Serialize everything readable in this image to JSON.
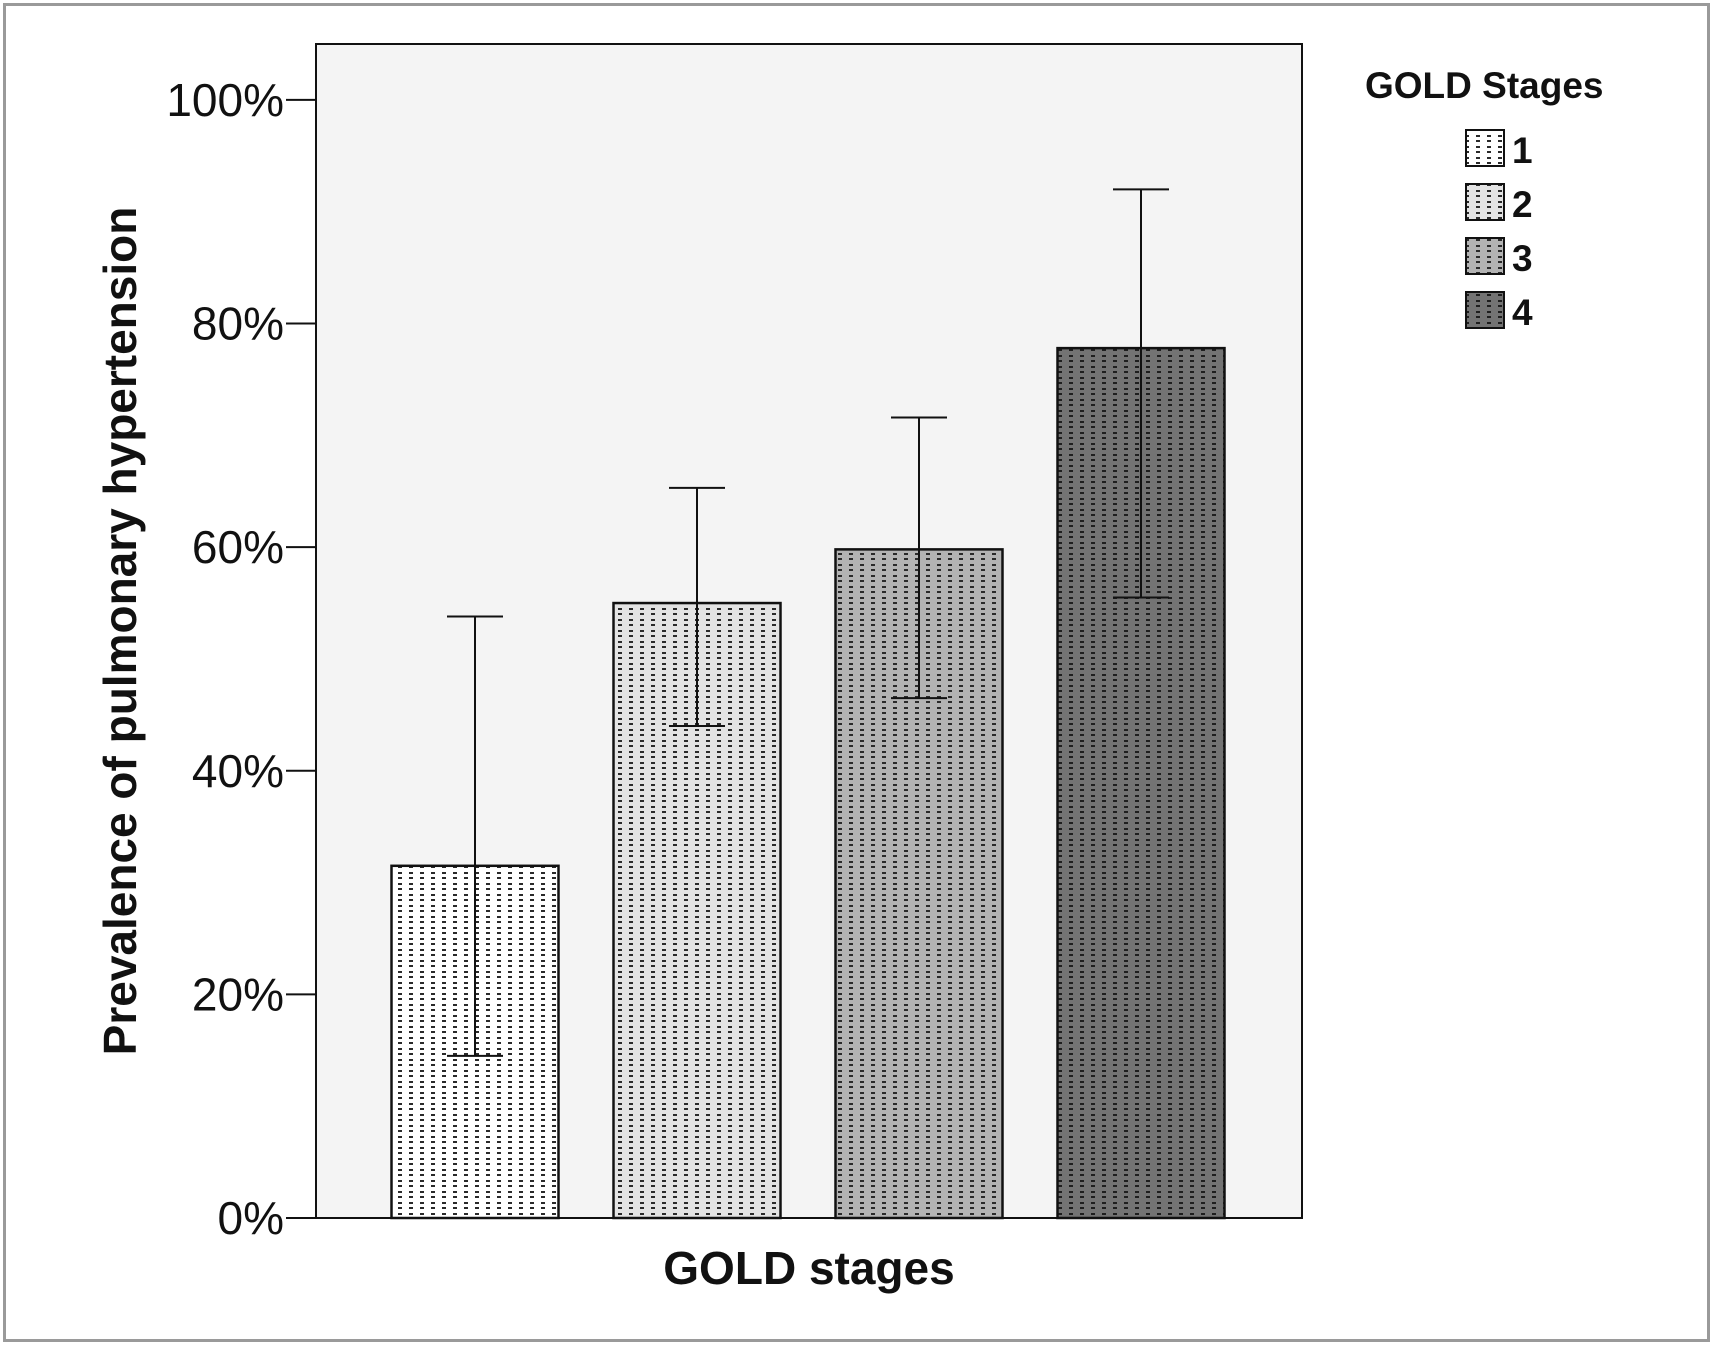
{
  "chart_data": {
    "type": "bar",
    "categories": [
      "1",
      "2",
      "3",
      "4"
    ],
    "values": [
      31.5,
      55,
      59.8,
      77.8
    ],
    "error_bars": {
      "lower": [
        14.5,
        44,
        46.5,
        55.5
      ],
      "upper": [
        53.8,
        65.3,
        71.6,
        92
      ]
    },
    "xlabel": "GOLD stages",
    "ylabel": "Prevalence of pulmonary hypertension",
    "ylim": [
      0,
      105
    ],
    "yticks": [
      0,
      20,
      40,
      60,
      80,
      100
    ],
    "ytick_labels": [
      "0%",
      "20%",
      "40%",
      "60%",
      "80%",
      "100%"
    ],
    "grid": false,
    "legend": {
      "title": "GOLD Stages",
      "placement": "top-right-outside",
      "entries": [
        "1",
        "2",
        "3",
        "4"
      ]
    },
    "colors": {
      "plot_background": "#f4f4f4",
      "bar_fills": [
        "#ffffff",
        "#e3e3e3",
        "#b3b3b3",
        "#737373"
      ],
      "dot_colors": [
        "#2a2a2a",
        "#2a2a2a",
        "#2a2a2a",
        "#1e1e1e"
      ],
      "axis": "#111111",
      "frame_border": "#9a9a9a"
    }
  }
}
